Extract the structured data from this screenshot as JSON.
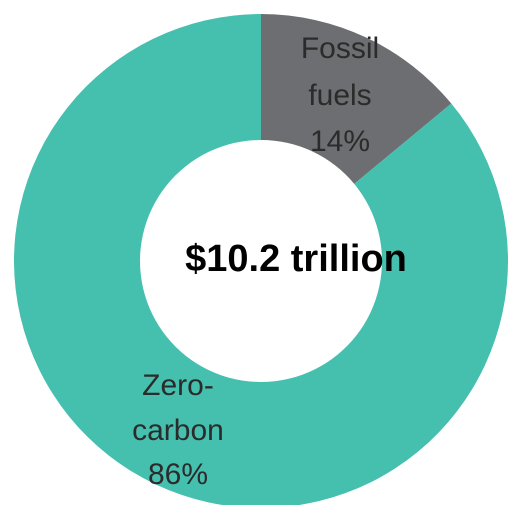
{
  "chart_data": {
    "type": "pie",
    "variant": "donut",
    "center_text": "$10.2 trillion",
    "slices": [
      {
        "label_lines": [
          "Fossil",
          "fuels"
        ],
        "value_label": "14%",
        "value": 14,
        "color": "#6d6e71"
      },
      {
        "label_lines": [
          "Zero-",
          "carbon"
        ],
        "value_label": "86%",
        "value": 86,
        "color": "#45bfae"
      }
    ],
    "legend": "none"
  }
}
